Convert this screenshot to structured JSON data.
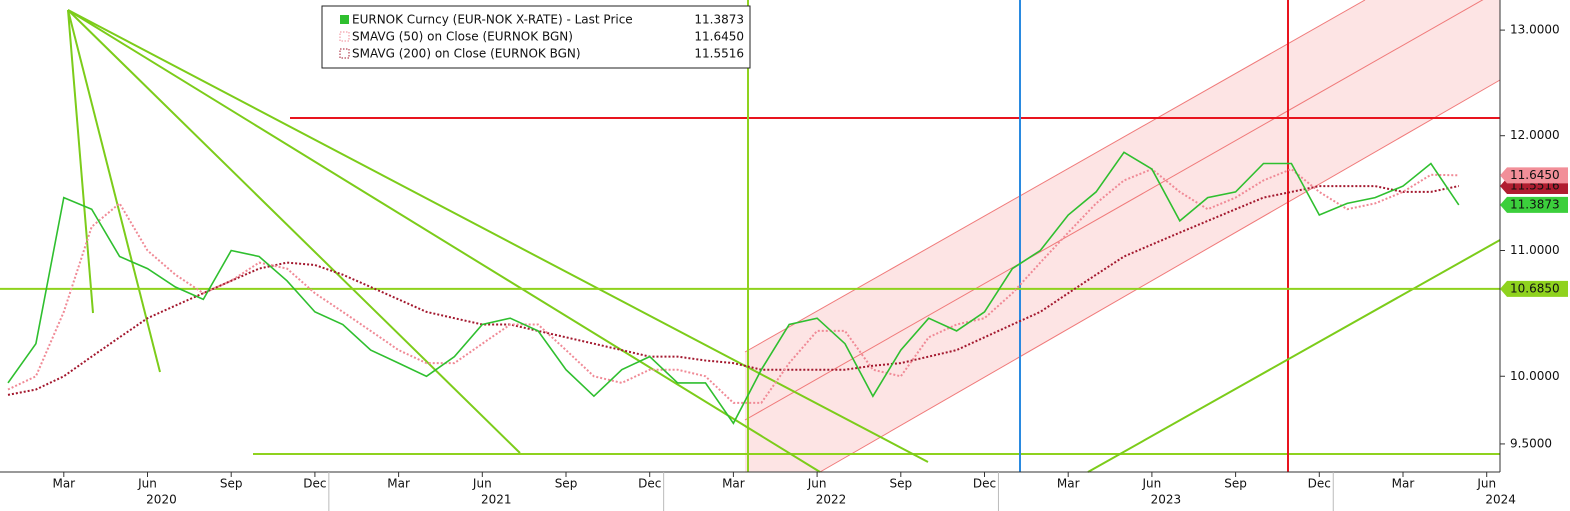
{
  "chart_data": {
    "type": "line",
    "log": true,
    "x": [
      "2020-01",
      "2020-02",
      "2020-03",
      "2020-04",
      "2020-05",
      "2020-06",
      "2020-07",
      "2020-08",
      "2020-09",
      "2020-10",
      "2020-11",
      "2020-12",
      "2021-01",
      "2021-02",
      "2021-03",
      "2021-04",
      "2021-05",
      "2021-06",
      "2021-07",
      "2021-08",
      "2021-09",
      "2021-10",
      "2021-11",
      "2021-12",
      "2022-01",
      "2022-02",
      "2022-03",
      "2022-04",
      "2022-05",
      "2022-06",
      "2022-07",
      "2022-08",
      "2022-09",
      "2022-10",
      "2022-11",
      "2022-12",
      "2023-01",
      "2023-02",
      "2023-03",
      "2023-04",
      "2023-05",
      "2023-06",
      "2023-07",
      "2023-08",
      "2023-09",
      "2023-10",
      "2023-11",
      "2023-12",
      "2024-01",
      "2024-02",
      "2024-03",
      "2024-04",
      "2024-05"
    ],
    "series": [
      {
        "name": "EURNOK Curncy (EUR-NOK X-RATE) - Last Price",
        "color": "#2fbf2f",
        "style": "solid",
        "last": {
          "value": 11.3873,
          "label": "11.3873"
        },
        "values": [
          9.95,
          10.25,
          11.45,
          11.35,
          10.95,
          10.85,
          10.7,
          10.6,
          11.0,
          10.95,
          10.75,
          10.5,
          10.4,
          10.2,
          10.1,
          10.0,
          10.15,
          10.4,
          10.45,
          10.35,
          10.05,
          9.85,
          10.05,
          10.15,
          9.95,
          9.95,
          9.65,
          10.05,
          10.4,
          10.45,
          10.25,
          9.85,
          10.2,
          10.45,
          10.35,
          10.5,
          10.85,
          11.0,
          11.3,
          11.5,
          11.85,
          11.7,
          11.25,
          11.45,
          11.5,
          11.75,
          11.75,
          11.3,
          11.4,
          11.45,
          11.55,
          11.75,
          11.3873
        ]
      },
      {
        "name": "SMAVG (50)  on Close (EURNOK BGN)",
        "color": "#f08a96",
        "style": "dotted",
        "last": {
          "value": 11.645,
          "label": "11.6450"
        },
        "values": [
          9.9,
          10.0,
          10.5,
          11.2,
          11.4,
          11.0,
          10.8,
          10.65,
          10.75,
          10.9,
          10.85,
          10.65,
          10.5,
          10.35,
          10.2,
          10.1,
          10.1,
          10.25,
          10.4,
          10.4,
          10.2,
          10.0,
          9.95,
          10.05,
          10.05,
          10.0,
          9.8,
          9.8,
          10.1,
          10.35,
          10.35,
          10.05,
          10.0,
          10.3,
          10.4,
          10.45,
          10.65,
          10.9,
          11.15,
          11.4,
          11.6,
          11.7,
          11.5,
          11.35,
          11.45,
          11.6,
          11.7,
          11.5,
          11.35,
          11.4,
          11.5,
          11.65,
          11.645
        ]
      },
      {
        "name": "SMAVG (200)  on Close (EURNOK BGN)",
        "color": "#a3182e",
        "style": "dotted",
        "last": {
          "value": 11.5516,
          "label": "11.5516"
        },
        "values": [
          9.86,
          9.9,
          10.0,
          10.15,
          10.3,
          10.45,
          10.55,
          10.65,
          10.75,
          10.85,
          10.9,
          10.88,
          10.8,
          10.7,
          10.6,
          10.5,
          10.45,
          10.4,
          10.4,
          10.35,
          10.3,
          10.25,
          10.2,
          10.15,
          10.15,
          10.12,
          10.1,
          10.05,
          10.05,
          10.05,
          10.05,
          10.08,
          10.1,
          10.15,
          10.2,
          10.3,
          10.4,
          10.5,
          10.65,
          10.8,
          10.95,
          11.05,
          11.15,
          11.25,
          11.35,
          11.45,
          11.5,
          11.55,
          11.55,
          11.55,
          11.5,
          11.5,
          11.5516
        ]
      }
    ],
    "level": {
      "value": 10.685,
      "label": "10.6850",
      "color": "#8fd21e"
    },
    "ylim": [
      9.3,
      13.3
    ],
    "yticks": [
      {
        "value": 9.5,
        "label": "9.5000"
      },
      {
        "value": 10.0,
        "label": "10.0000"
      },
      {
        "value": 11.0,
        "label": "11.0000"
      },
      {
        "value": 12.0,
        "label": "12.0000"
      },
      {
        "value": 13.0,
        "label": "13.0000"
      }
    ],
    "xticks": [
      {
        "value": "2020-03",
        "label": "Mar"
      },
      {
        "value": "2020-06",
        "label": "Jun"
      },
      {
        "value": "2020-09",
        "label": "Sep"
      },
      {
        "value": "2020-12",
        "label": "Dec"
      },
      {
        "value": "2021-03",
        "label": "Mar"
      },
      {
        "value": "2021-06",
        "label": "Jun"
      },
      {
        "value": "2021-09",
        "label": "Sep"
      },
      {
        "value": "2021-12",
        "label": "Dec"
      },
      {
        "value": "2022-03",
        "label": "Mar"
      },
      {
        "value": "2022-06",
        "label": "Jun"
      },
      {
        "value": "2022-09",
        "label": "Sep"
      },
      {
        "value": "2022-12",
        "label": "Dec"
      },
      {
        "value": "2023-03",
        "label": "Mar"
      },
      {
        "value": "2023-06",
        "label": "Jun"
      },
      {
        "value": "2023-09",
        "label": "Sep"
      },
      {
        "value": "2023-12",
        "label": "Dec"
      },
      {
        "value": "2024-03",
        "label": "Mar"
      },
      {
        "value": "2024-06",
        "label": "Jun"
      }
    ],
    "years": [
      2020,
      2021,
      2022,
      2023,
      2024
    ]
  }
}
